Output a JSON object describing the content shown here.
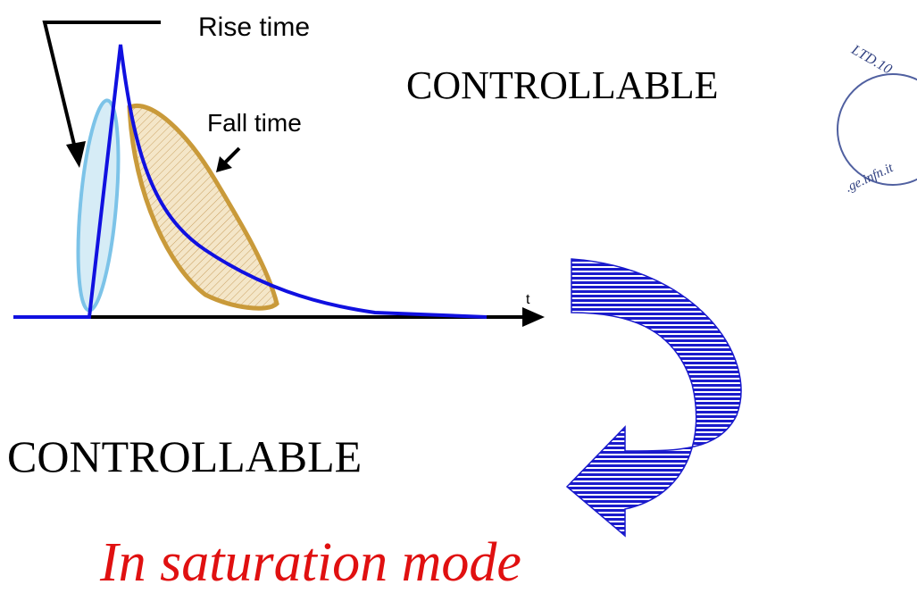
{
  "labels": {
    "rise_time": "Rise time",
    "fall_time": "Fall time",
    "axis_t": "t"
  },
  "top_text": "CONTROLLABLE",
  "bottom_text": "CONTROLLABLE",
  "caption": "In saturation mode",
  "stamp": {
    "text_top": "LTD.10",
    "text_bottom": ".ge.infn.it"
  }
}
